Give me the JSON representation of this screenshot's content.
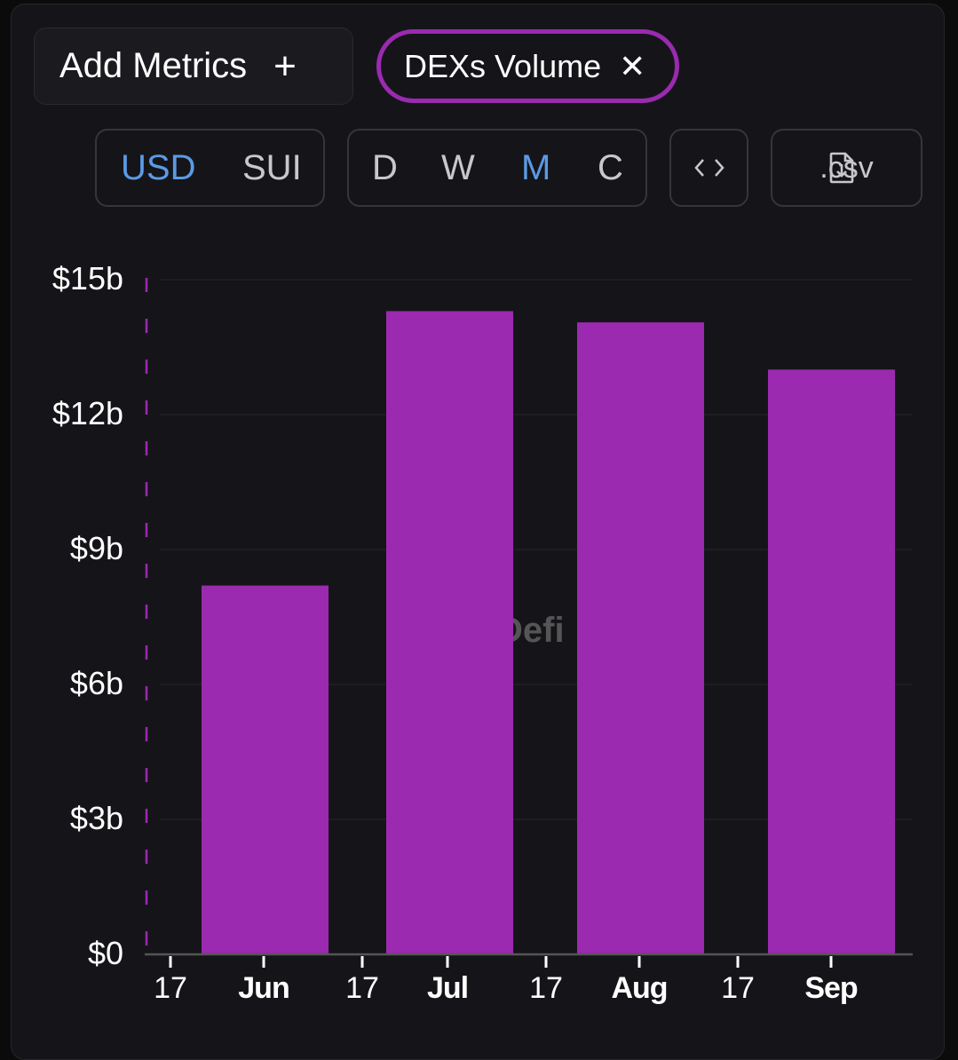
{
  "toolbar": {
    "add_metrics_label": "Add Metrics",
    "add_metrics_icon": "plus-icon",
    "metric_chip_label": "DEXs Volume",
    "metric_chip_icon": "close-icon",
    "currency_options": [
      "USD",
      "SUI"
    ],
    "currency_selected": "USD",
    "period_options": [
      "D",
      "W",
      "M",
      "C"
    ],
    "period_selected": "M",
    "embed_icon": "code-brackets-icon",
    "csv_label": ".csv",
    "csv_icon": "file-download-icon"
  },
  "colors": {
    "bar": "#9b2ab0",
    "active": "#5b9ae6",
    "background": "#151519"
  },
  "watermark": "DefiLlama",
  "chart_data": {
    "type": "bar",
    "title": "DEXs Volume",
    "xlabel": "",
    "ylabel": "",
    "categories": [
      "Jun",
      "Jul",
      "Aug",
      "Sep"
    ],
    "values": [
      8.2,
      14.3,
      14.05,
      13.0
    ],
    "unit": "billion USD",
    "ylim": [
      0,
      15
    ],
    "y_ticks": [
      0,
      3,
      6,
      9,
      12,
      15
    ],
    "y_tick_labels": [
      "$0",
      "$3b",
      "$6b",
      "$9b",
      "$12b",
      "$15b"
    ],
    "x_tick_labels": [
      "17",
      "Jun",
      "17",
      "Jul",
      "17",
      "Aug",
      "17",
      "Sep"
    ],
    "grid": true,
    "legend": "none"
  }
}
